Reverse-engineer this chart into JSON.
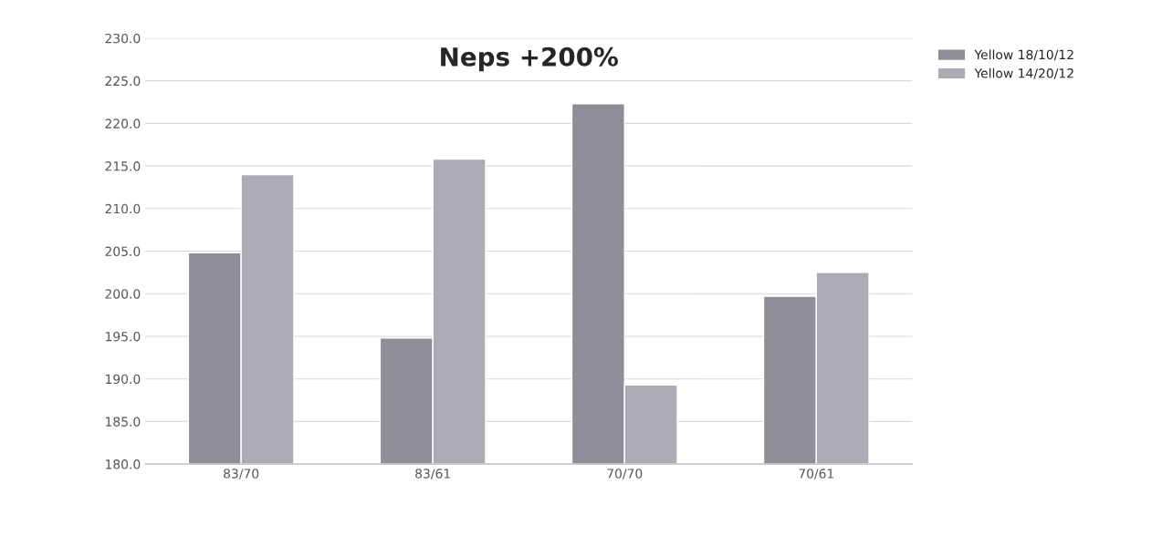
{
  "chart_data": {
    "type": "bar",
    "title": "Neps +200%",
    "categories": [
      "83/70",
      "83/61",
      "70/70",
      "70/61"
    ],
    "series": [
      {
        "name": "Yellow 18/10/12",
        "color": "#8e8e98",
        "values": [
          204.8,
          194.8,
          222.3,
          199.7
        ]
      },
      {
        "name": "Yellow 14/20/12",
        "color": "#ababb3",
        "values": [
          214.0,
          215.8,
          189.3,
          202.5
        ]
      }
    ],
    "ylim": [
      180,
      230
    ],
    "yticks": [
      {
        "value": 180,
        "label": "180.0"
      },
      {
        "value": 185,
        "label": "185.0"
      },
      {
        "value": 190,
        "label": "190.0"
      },
      {
        "value": 195,
        "label": "195.0"
      },
      {
        "value": 200,
        "label": "200.0"
      },
      {
        "value": 205,
        "label": "205.0"
      },
      {
        "value": 210,
        "label": "210.0"
      },
      {
        "value": 215,
        "label": "215.0"
      },
      {
        "value": 220,
        "label": "220.0"
      },
      {
        "value": 225,
        "label": "225.0"
      },
      {
        "value": 230,
        "label": "230.0"
      }
    ],
    "grid": "y",
    "legend": "top right"
  }
}
